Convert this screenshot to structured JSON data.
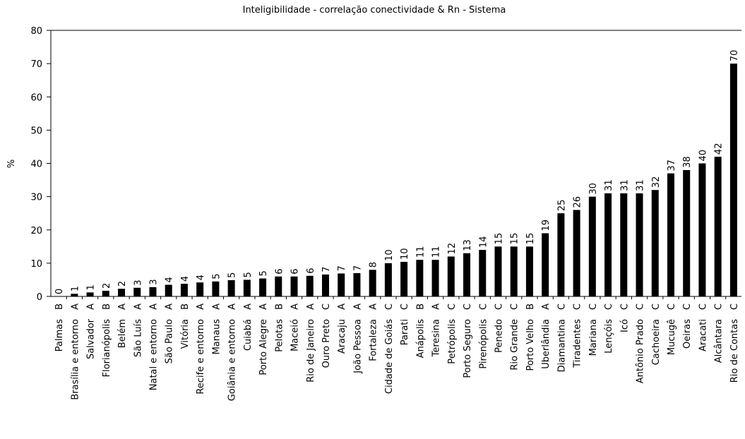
{
  "chart_data": {
    "type": "bar",
    "title": "Inteligibilidade - correlação conectividade & Rn - Sistema",
    "ylabel": "%",
    "categories": [
      "Palmas",
      "Brasília e entorno",
      "Salvador",
      "Florianópolis",
      "Belém",
      "São Luís",
      "Natal e entorno",
      "São Paulo",
      "Vitória",
      "Recife e entorno",
      "Manaus",
      "Goiânia e entorno",
      "Cuiabá",
      "Porto Alegre",
      "Pelotas",
      "Maceió",
      "Rio de Janeiro",
      "Ouro Preto",
      "Aracaju",
      "João Pessoa",
      "Fortaleza",
      "Cidade de Goiás",
      "Parati",
      "Anápolis",
      "Teresina",
      "Petrópolis",
      "Porto Seguro",
      "Pirenópolis",
      "Penedo",
      "Rio Grande",
      "Porto Velho",
      "Uberlândia",
      "Diamantina",
      "Tiradentes",
      "Mariana",
      "Lençóis",
      "Icó",
      "Antônio Prado",
      "Cachoeira",
      "Mucugê",
      "Oeiras",
      "Aracati",
      "Alcântara",
      "Rio de Contas"
    ],
    "classes": [
      "B",
      "A",
      "A",
      "B",
      "A",
      "A",
      "A",
      "A",
      "B",
      "A",
      "A",
      "A",
      "A",
      "A",
      "B",
      "A",
      "A",
      "C",
      "A",
      "A",
      "A",
      "C",
      "C",
      "B",
      "A",
      "C",
      "C",
      "C",
      "C",
      "C",
      "B",
      "A",
      "C",
      "C",
      "C",
      "C",
      "C",
      "C",
      "C",
      "C",
      "C",
      "C",
      "C",
      "C"
    ],
    "values": [
      0,
      0.8,
      1.2,
      1.7,
      2.3,
      2.6,
      2.8,
      3.5,
      3.8,
      4.2,
      4.5,
      4.9,
      5.0,
      5.4,
      6.0,
      6.0,
      6.2,
      6.6,
      6.9,
      7.0,
      8.0,
      10.0,
      10.4,
      11.0,
      11.0,
      12.0,
      13.0,
      14.0,
      15.0,
      15.0,
      15.0,
      19.0,
      25.0,
      26.0,
      30.0,
      31.0,
      31.0,
      31.0,
      32.0,
      37.0,
      38.0,
      40.0,
      42.0,
      70.0
    ],
    "value_labels": [
      "0",
      "1",
      "1",
      "2",
      "2",
      "3",
      "3",
      "4",
      "4",
      "4",
      "5",
      "5",
      "5",
      "5",
      "6",
      "6",
      "6",
      "7",
      "7",
      "7",
      "8",
      "10",
      "10",
      "11",
      "11",
      "12",
      "13",
      "14",
      "15",
      "15",
      "15",
      "19",
      "25",
      "26",
      "30",
      "31",
      "31",
      "31",
      "32",
      "37",
      "38",
      "40",
      "42",
      "70"
    ],
    "color": "#000000",
    "ylim": [
      0,
      80
    ],
    "yticks": [
      0,
      10,
      20,
      30,
      40,
      50,
      60,
      70,
      80
    ]
  }
}
